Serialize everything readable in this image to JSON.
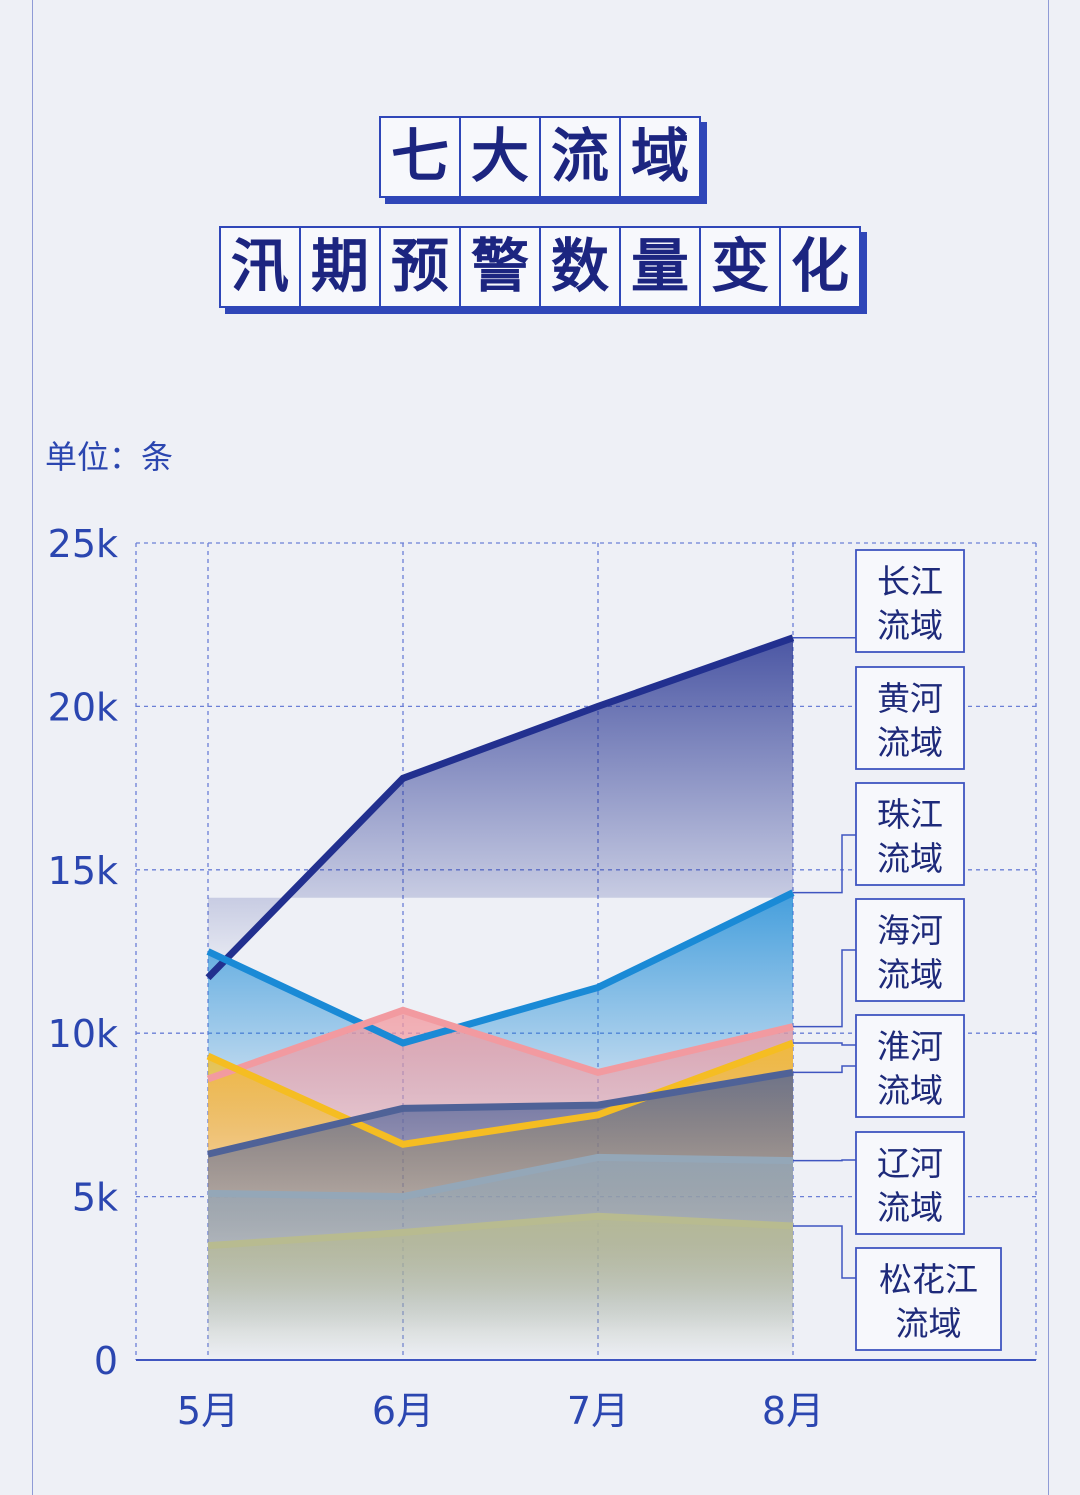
{
  "title_line1": [
    "七",
    "大",
    "流",
    "域"
  ],
  "title_line2": [
    "汛",
    "期",
    "预",
    "警",
    "数",
    "量",
    "变",
    "化"
  ],
  "unit_label": "单位：条",
  "chart_data": {
    "type": "line",
    "categories": [
      "5月",
      "6月",
      "7月",
      "8月"
    ],
    "ylim": [
      0,
      25000
    ],
    "yticks": [
      0,
      5000,
      10000,
      15000,
      20000,
      25000
    ],
    "ytick_labels": [
      "0",
      "5k",
      "10k",
      "15k",
      "20k",
      "25k"
    ],
    "grid": true,
    "series": [
      {
        "name": "长江流域",
        "values": [
          11700,
          17800,
          20000,
          22100
        ],
        "color": "#22308f"
      },
      {
        "name": "黄河流域",
        "values": [
          12500,
          9700,
          11400,
          14300
        ],
        "color": "#1a8ad6"
      },
      {
        "name": "珠江流域",
        "values": [
          8600,
          10700,
          8800,
          10200
        ],
        "color": "#f29aa0"
      },
      {
        "name": "海河流域",
        "values": [
          9300,
          6600,
          7500,
          9700
        ],
        "color": "#f5bd22"
      },
      {
        "name": "淮河流域",
        "values": [
          6300,
          7700,
          7800,
          8800
        ],
        "color": "#4f6297"
      },
      {
        "name": "辽河流域",
        "values": [
          5100,
          5000,
          6200,
          6100
        ],
        "color": "#94a7b8"
      },
      {
        "name": "松花江流域",
        "values": [
          3500,
          3900,
          4400,
          4100
        ],
        "color": "#b8bb90"
      }
    ]
  },
  "legend": [
    {
      "line1": "长江",
      "line2": "流域"
    },
    {
      "line1": "黄河",
      "line2": "流域"
    },
    {
      "line1": "珠江",
      "line2": "流域"
    },
    {
      "line1": "海河",
      "line2": "流域"
    },
    {
      "line1": "淮河",
      "line2": "流域"
    },
    {
      "line1": "辽河",
      "line2": "流域"
    },
    {
      "line1": "松花江",
      "line2": "流域"
    }
  ]
}
